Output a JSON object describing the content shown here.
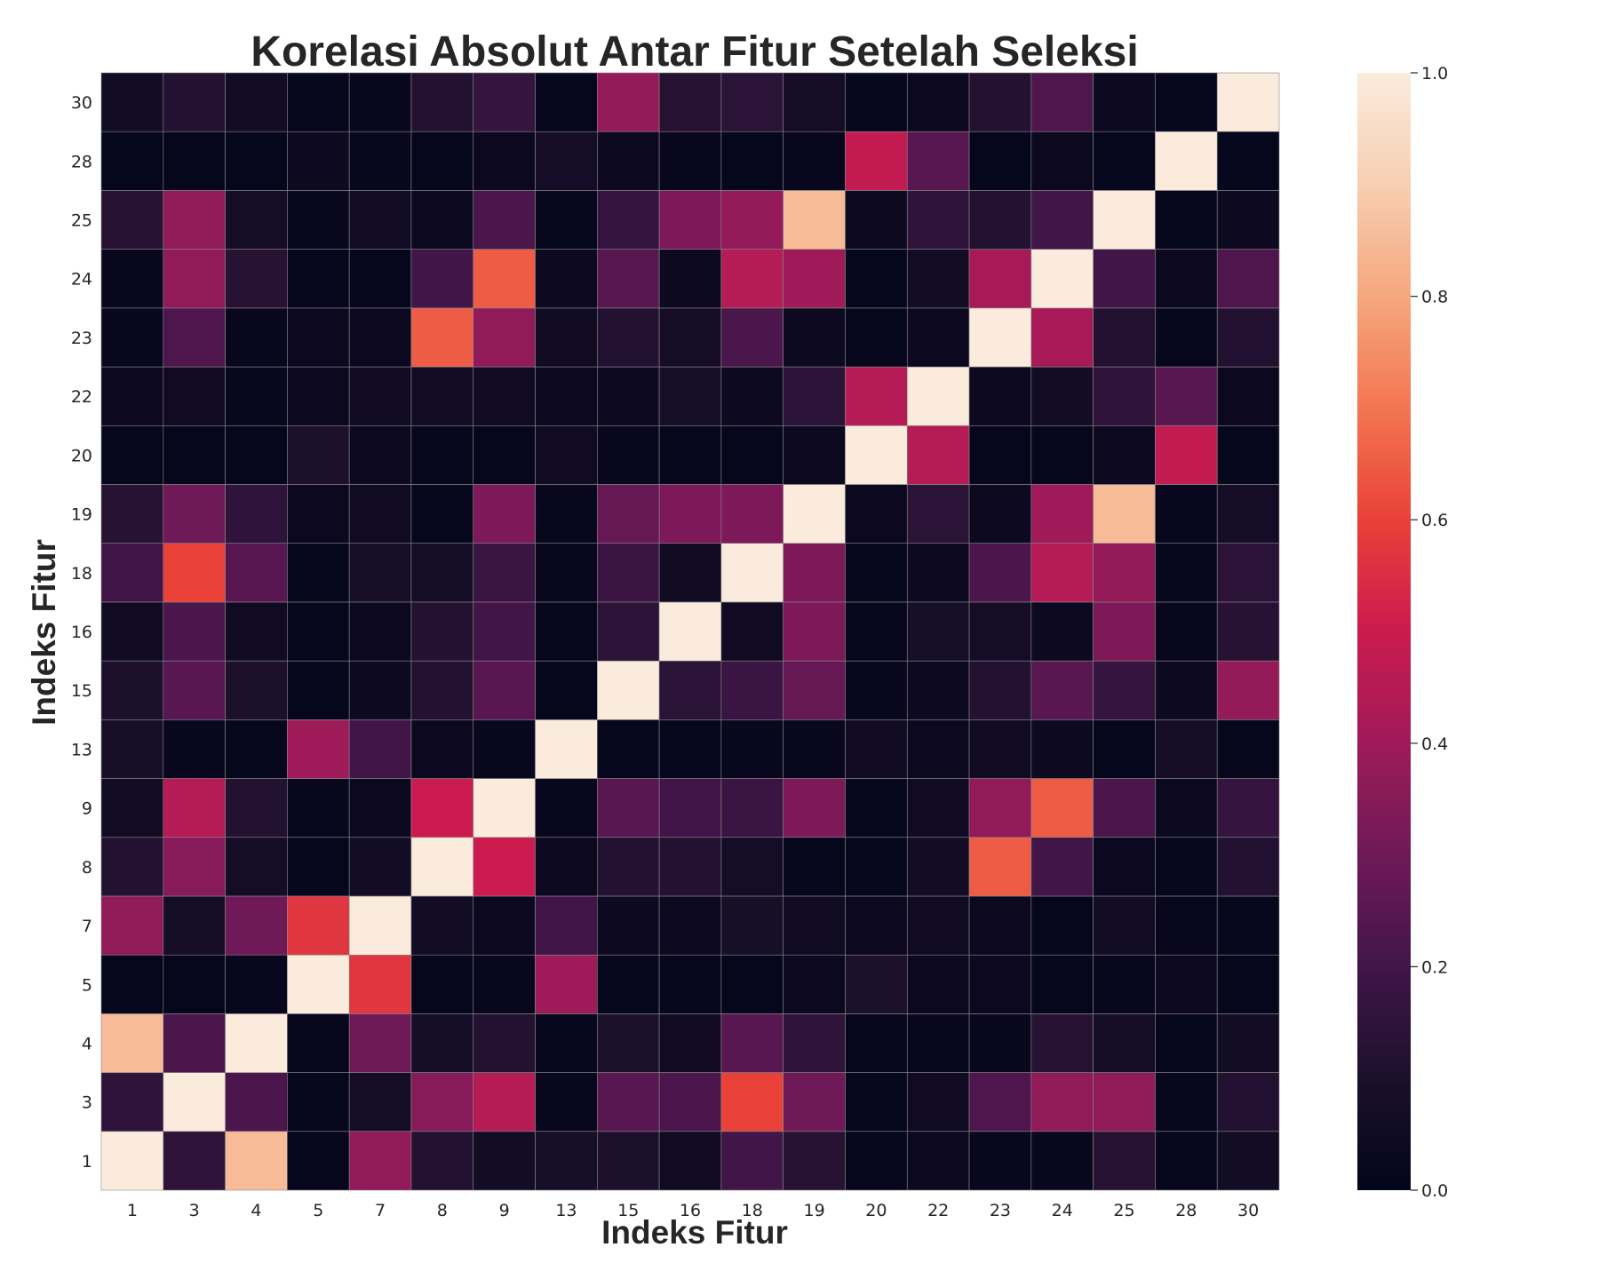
{
  "chart_data": {
    "type": "heatmap",
    "title": "Korelasi Absolut Antar Fitur Setelah Seleksi",
    "xlabel": "Indeks Fitur",
    "ylabel": "Indeks Fitur",
    "labels": [
      "1",
      "3",
      "4",
      "5",
      "7",
      "8",
      "9",
      "13",
      "15",
      "16",
      "18",
      "19",
      "20",
      "22",
      "23",
      "24",
      "25",
      "28",
      "30"
    ],
    "values": [
      [
        1.0,
        0.15,
        0.85,
        0.01,
        0.37,
        0.12,
        0.06,
        0.08,
        0.1,
        0.05,
        0.2,
        0.13,
        0.01,
        0.03,
        0.02,
        0.02,
        0.13,
        0.01,
        0.06
      ],
      [
        0.15,
        1.0,
        0.22,
        0.01,
        0.07,
        0.35,
        0.45,
        0.02,
        0.25,
        0.22,
        0.6,
        0.3,
        0.01,
        0.05,
        0.23,
        0.37,
        0.37,
        0.01,
        0.12
      ],
      [
        0.85,
        0.22,
        1.0,
        0.02,
        0.3,
        0.07,
        0.12,
        0.01,
        0.1,
        0.05,
        0.25,
        0.15,
        0.01,
        0.02,
        0.02,
        0.13,
        0.07,
        0.01,
        0.06
      ],
      [
        0.01,
        0.01,
        0.02,
        1.0,
        0.57,
        0.01,
        0.02,
        0.4,
        0.01,
        0.01,
        0.01,
        0.03,
        0.1,
        0.03,
        0.03,
        0.01,
        0.02,
        0.04,
        0.01
      ],
      [
        0.37,
        0.07,
        0.3,
        0.57,
        1.0,
        0.06,
        0.03,
        0.2,
        0.04,
        0.03,
        0.08,
        0.05,
        0.03,
        0.05,
        0.03,
        0.01,
        0.06,
        0.02,
        0.02
      ],
      [
        0.12,
        0.35,
        0.07,
        0.01,
        0.06,
        1.0,
        0.5,
        0.03,
        0.12,
        0.12,
        0.07,
        0.01,
        0.01,
        0.06,
        0.65,
        0.2,
        0.03,
        0.01,
        0.12
      ],
      [
        0.06,
        0.45,
        0.12,
        0.02,
        0.03,
        0.5,
        1.0,
        0.02,
        0.25,
        0.2,
        0.18,
        0.33,
        0.01,
        0.05,
        0.37,
        0.65,
        0.22,
        0.03,
        0.17
      ],
      [
        0.08,
        0.02,
        0.01,
        0.4,
        0.2,
        0.03,
        0.02,
        1.0,
        0.01,
        0.01,
        0.02,
        0.02,
        0.05,
        0.03,
        0.05,
        0.04,
        0.01,
        0.07,
        0.01
      ],
      [
        0.1,
        0.25,
        0.1,
        0.01,
        0.04,
        0.12,
        0.25,
        0.01,
        1.0,
        0.14,
        0.18,
        0.28,
        0.02,
        0.04,
        0.12,
        0.25,
        0.17,
        0.04,
        0.38
      ],
      [
        0.05,
        0.22,
        0.05,
        0.01,
        0.03,
        0.12,
        0.2,
        0.01,
        0.14,
        1.0,
        0.05,
        0.33,
        0.01,
        0.08,
        0.07,
        0.04,
        0.33,
        0.02,
        0.13
      ],
      [
        0.2,
        0.6,
        0.25,
        0.01,
        0.08,
        0.07,
        0.18,
        0.02,
        0.18,
        0.05,
        1.0,
        0.33,
        0.01,
        0.04,
        0.22,
        0.45,
        0.38,
        0.01,
        0.14
      ],
      [
        0.13,
        0.3,
        0.15,
        0.03,
        0.05,
        0.01,
        0.33,
        0.02,
        0.28,
        0.33,
        0.33,
        1.0,
        0.03,
        0.14,
        0.04,
        0.4,
        0.85,
        0.02,
        0.07
      ],
      [
        0.01,
        0.01,
        0.01,
        0.1,
        0.03,
        0.01,
        0.01,
        0.05,
        0.02,
        0.01,
        0.01,
        0.03,
        1.0,
        0.45,
        0.01,
        0.01,
        0.04,
        0.48,
        0.01
      ],
      [
        0.03,
        0.05,
        0.02,
        0.03,
        0.05,
        0.06,
        0.05,
        0.03,
        0.04,
        0.08,
        0.04,
        0.14,
        0.45,
        1.0,
        0.04,
        0.06,
        0.15,
        0.25,
        0.03
      ],
      [
        0.02,
        0.23,
        0.02,
        0.03,
        0.03,
        0.65,
        0.37,
        0.05,
        0.12,
        0.07,
        0.22,
        0.04,
        0.01,
        0.04,
        1.0,
        0.42,
        0.12,
        0.01,
        0.12
      ],
      [
        0.02,
        0.37,
        0.13,
        0.01,
        0.01,
        0.2,
        0.65,
        0.04,
        0.25,
        0.04,
        0.45,
        0.4,
        0.01,
        0.06,
        0.42,
        1.0,
        0.2,
        0.03,
        0.23
      ],
      [
        0.13,
        0.37,
        0.07,
        0.02,
        0.06,
        0.03,
        0.22,
        0.01,
        0.17,
        0.33,
        0.38,
        0.85,
        0.04,
        0.15,
        0.12,
        0.2,
        1.0,
        0.01,
        0.04
      ],
      [
        0.01,
        0.01,
        0.01,
        0.04,
        0.02,
        0.01,
        0.03,
        0.07,
        0.04,
        0.02,
        0.01,
        0.02,
        0.48,
        0.25,
        0.01,
        0.03,
        0.01,
        1.0,
        0.01
      ],
      [
        0.06,
        0.12,
        0.06,
        0.01,
        0.02,
        0.12,
        0.17,
        0.01,
        0.38,
        0.13,
        0.14,
        0.07,
        0.01,
        0.03,
        0.12,
        0.23,
        0.04,
        0.01,
        1.0
      ]
    ],
    "vmin": 0.0,
    "vmax": 1.0,
    "colormap": "rocket",
    "colorbar_ticks": [
      "0.0",
      "0.2",
      "0.4",
      "0.6",
      "0.8",
      "1.0"
    ],
    "y_axis_order": "descending-top",
    "grid": true,
    "cell_border_color": "#8c8c8c"
  }
}
